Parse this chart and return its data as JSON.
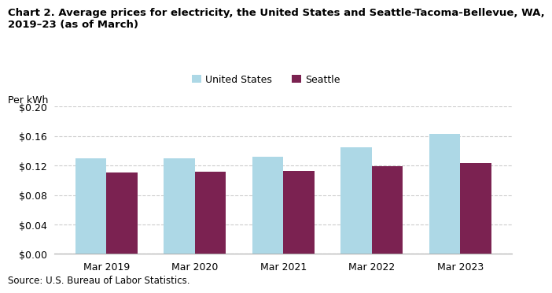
{
  "title_line1": "Chart 2. Average prices for electricity, the United States and Seattle-Tacoma-Bellevue, WA,",
  "title_line2": "2019–23 (as of March)",
  "ylabel": "Per kWh",
  "source": "Source: U.S. Bureau of Labor Statistics.",
  "categories": [
    "Mar 2019",
    "Mar 2020",
    "Mar 2021",
    "Mar 2022",
    "Mar 2023"
  ],
  "us_values": [
    0.13,
    0.1295,
    0.1315,
    0.145,
    0.163
  ],
  "seattle_values": [
    0.111,
    0.1115,
    0.113,
    0.1185,
    0.1235
  ],
  "us_color": "#ADD8E6",
  "seattle_color": "#7B2251",
  "legend_labels": [
    "United States",
    "Seattle"
  ],
  "ylim": [
    0,
    0.2
  ],
  "yticks": [
    0.0,
    0.04,
    0.08,
    0.12,
    0.16,
    0.2
  ],
  "bar_width": 0.35,
  "bg_color": "#ffffff",
  "grid_color": "#cccccc",
  "title_fontsize": 9.5,
  "label_fontsize": 9,
  "tick_fontsize": 9
}
